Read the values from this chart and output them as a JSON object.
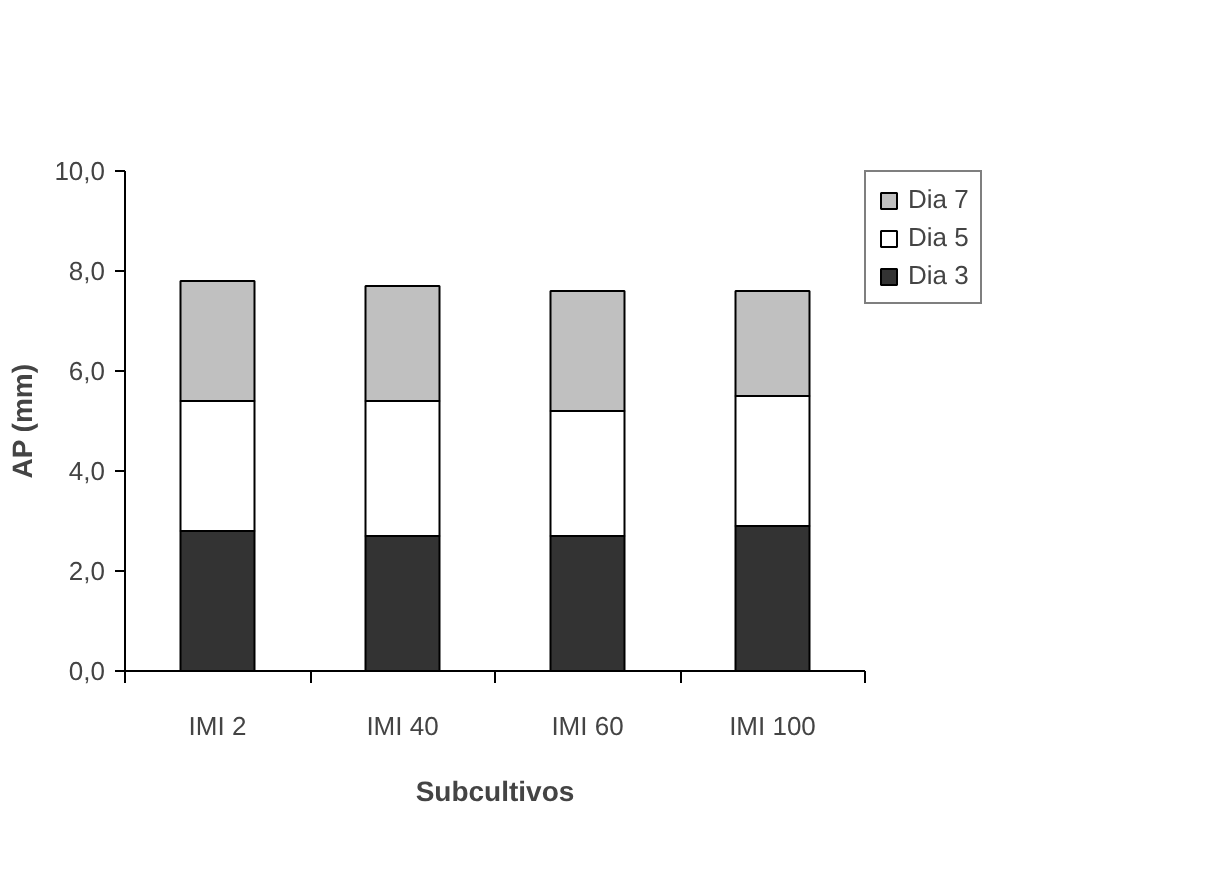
{
  "chart_data": {
    "type": "bar",
    "stacked": true,
    "xlabel": "Subcultivos",
    "ylabel": "AP (mm)",
    "categories": [
      "IMI 2",
      "IMI 40",
      "IMI 60",
      "IMI 100"
    ],
    "series": [
      {
        "name": "Dia 3",
        "color": "#333333",
        "values": [
          2.8,
          2.7,
          2.7,
          2.9
        ]
      },
      {
        "name": "Dia 5",
        "color": "#ffffff",
        "values": [
          2.6,
          2.7,
          2.5,
          2.6
        ]
      },
      {
        "name": "Dia 7",
        "color": "#c0c0c0",
        "values": [
          2.4,
          2.3,
          2.4,
          2.1
        ]
      }
    ],
    "ylim": [
      0,
      10
    ],
    "yticks": [
      {
        "value": 0,
        "label": "0,0"
      },
      {
        "value": 2,
        "label": "2,0"
      },
      {
        "value": 4,
        "label": "4,0"
      },
      {
        "value": 6,
        "label": "6,0"
      },
      {
        "value": 8,
        "label": "8,0"
      },
      {
        "value": 10,
        "label": "10,0"
      }
    ],
    "grid": false,
    "legend": "top right"
  }
}
